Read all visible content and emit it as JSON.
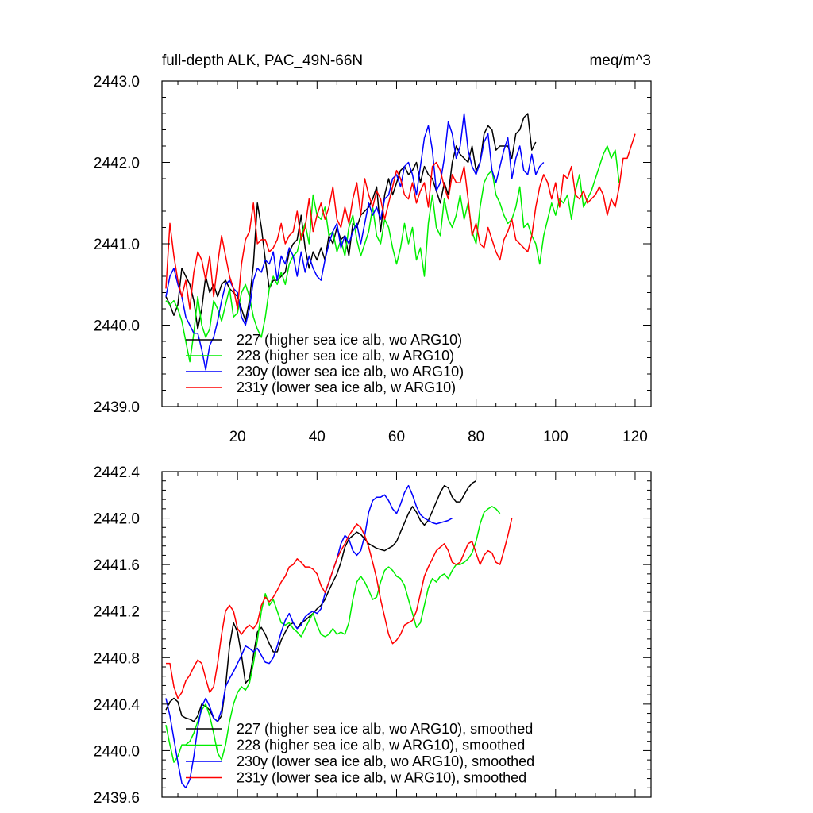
{
  "chart_data": [
    {
      "type": "line",
      "title_left": "full-depth ALK, PAC_49N-66N",
      "title_right": "meq/m^3",
      "xlabel": "",
      "ylabel": "",
      "xlim": [
        1,
        124
      ],
      "ylim": [
        2439.0,
        2443.0
      ],
      "x_ticks": [
        20,
        40,
        60,
        80,
        100,
        120
      ],
      "x_tick_labels": [
        "20",
        "40",
        "60",
        "80",
        "100",
        "120"
      ],
      "y_ticks": [
        2439.0,
        2440.0,
        2441.0,
        2442.0,
        2443.0
      ],
      "y_tick_labels": [
        "2439.0",
        "2440.0",
        "2441.0",
        "2442.0",
        "2443.0"
      ],
      "grid": false,
      "legend_position": "bottom-left",
      "series": [
        {
          "name": "227 (higher sea ice alb, wo ARG10)",
          "color": "#000000",
          "values": [
            2440.35,
            2440.25,
            2440.12,
            2440.25,
            2440.7,
            2440.6,
            2440.5,
            2440.3,
            2439.95,
            2440.2,
            2440.6,
            2440.4,
            2440.5,
            2440.35,
            2440.5,
            2440.55,
            2440.45,
            2440.4,
            2440.35,
            2440.2,
            2440.05,
            2440.3,
            2440.75,
            2441.5,
            2441.2,
            2440.8,
            2440.45,
            2440.55,
            2440.55,
            2440.6,
            2440.65,
            2440.9,
            2441.0,
            2441.05,
            2441.35,
            2440.95,
            2440.7,
            2440.9,
            2440.8,
            2440.95,
            2440.8,
            2441.1,
            2441.0,
            2441.2,
            2441.05,
            2441.1,
            2440.85,
            2441.25,
            2441.2,
            2441.35,
            2441.4,
            2441.45,
            2441.55,
            2441.7,
            2441.15,
            2441.6,
            2441.8,
            2441.6,
            2441.75,
            2441.9,
            2441.95,
            2441.85,
            2441.9,
            2442.0,
            2441.75,
            2441.95,
            2441.85,
            2441.8,
            2441.65,
            2441.5,
            2441.75,
            2441.6,
            2442.0,
            2442.2,
            2442.1,
            2442.05,
            2442.0,
            2442.2,
            2441.9,
            2442.0,
            2442.35,
            2442.45,
            2442.4,
            2442.15,
            2442.2,
            2442.2,
            2442.2,
            2442.05,
            2442.35,
            2442.4,
            2442.55,
            2442.6,
            2442.15,
            2442.25
          ],
          "smoothed_values": [
            2440.35,
            2440.42,
            2440.45,
            2440.42,
            2440.35,
            2440.3,
            2440.28,
            2440.26,
            2440.3,
            2440.36,
            2440.38,
            2440.35,
            2440.28,
            2440.32,
            2440.4,
            2440.42,
            2440.38,
            2440.3,
            2440.22,
            2440.28,
            2440.4,
            2440.65,
            2440.95,
            2441.1,
            2441.05,
            2440.88,
            2440.7,
            2440.58,
            2440.6,
            2440.75,
            2440.95,
            2441.05,
            2441.0,
            2440.92,
            2440.85,
            2440.82,
            2440.8,
            2440.88,
            2440.98,
            2441.02,
            2441.05,
            2441.08,
            2441.1,
            2441.12,
            2441.15,
            2441.22,
            2441.3,
            2441.4,
            2441.5,
            2441.58,
            2441.62,
            2441.7,
            2441.78,
            2441.85,
            2441.85,
            2441.8,
            2441.76,
            2441.73,
            2441.73,
            2441.8,
            2441.92,
            2442.0,
            2442.02,
            2442.05,
            2441.98,
            2441.9,
            2441.95,
            2442.08,
            2442.15,
            2442.22,
            2442.28,
            2442.2,
            2442.14,
            2442.14,
            2442.2,
            2442.28,
            2442.3,
            2442.32
          ]
        },
        {
          "name": "228 (higher sea ice alb, w ARG10)",
          "color": "#00ee00",
          "values": [
            2440.3,
            2440.25,
            2440.3,
            2440.2,
            2440.05,
            2439.8,
            2439.55,
            2439.9,
            2440.35,
            2440.0,
            2439.85,
            2439.95,
            2440.3,
            2440.2,
            2440.05,
            2440.25,
            2440.45,
            2440.1,
            2440.15,
            2440.4,
            2440.5,
            2440.35,
            2440.1,
            2439.95,
            2439.85,
            2440.1,
            2440.45,
            2440.6,
            2440.5,
            2440.65,
            2440.5,
            2440.75,
            2440.85,
            2440.9,
            2441.1,
            2441.25,
            2441.0,
            2441.6,
            2441.35,
            2441.3,
            2441.45,
            2441.1,
            2441.15,
            2440.9,
            2441.05,
            2440.85,
            2441.2,
            2441.35,
            2441.05,
            2440.85,
            2441.0,
            2441.15,
            2441.45,
            2441.1,
            2441.0,
            2441.3,
            2441.2,
            2440.95,
            2440.75,
            2440.95,
            2441.25,
            2441.0,
            2441.2,
            2440.8,
            2440.95,
            2440.6,
            2441.25,
            2441.6,
            2441.2,
            2441.1,
            2441.55,
            2441.3,
            2441.2,
            2441.35,
            2441.6,
            2441.3,
            2441.5,
            2441.15,
            2441.0,
            2441.45,
            2441.75,
            2441.85,
            2441.9,
            2441.6,
            2441.5,
            2441.35,
            2441.25,
            2441.3,
            2441.45,
            2441.7,
            2441.2,
            2441.25,
            2441.1,
            2441.0,
            2440.75,
            2441.1,
            2441.3,
            2441.5,
            2441.35,
            2441.55,
            2441.5,
            2441.6,
            2441.3,
            2441.65,
            2441.85,
            2441.45,
            2441.55,
            2441.65,
            2441.8,
            2441.95,
            2442.1,
            2442.2,
            2442.05,
            2442.15,
            2441.75
          ]
        },
        {
          "name": "230y (lower sea ice alb, wo ARG10)",
          "color": "#0000ff",
          "values": [
            2440.35,
            2440.6,
            2440.7,
            2440.5,
            2440.35,
            2440.1,
            2440.0,
            2439.9,
            2439.9,
            2439.7,
            2439.45,
            2439.75,
            2439.85,
            2440.05,
            2440.3,
            2440.5,
            2440.55,
            2440.45,
            2440.4,
            2440.1,
            2440.0,
            2440.2,
            2440.55,
            2440.7,
            2440.65,
            2440.8,
            2440.75,
            2440.9,
            2440.55,
            2440.85,
            2440.75,
            2440.95,
            2440.85,
            2440.6,
            2440.9,
            2440.65,
            2440.85,
            2440.7,
            2440.6,
            2440.55,
            2440.8,
            2441.0,
            2441.15,
            2441.25,
            2440.95,
            2441.1,
            2441.0,
            2441.15,
            2441.25,
            2441.0,
            2441.25,
            2441.5,
            2441.35,
            2441.45,
            2441.3,
            2441.55,
            2441.6,
            2441.8,
            2441.85,
            2441.7,
            2441.95,
            2442.0,
            2441.85,
            2441.6,
            2441.95,
            2442.3,
            2442.45,
            2442.15,
            2441.65,
            2441.75,
            2442.05,
            2442.5,
            2442.35,
            2442.05,
            2442.2,
            2442.6,
            2442.15,
            2441.95,
            2441.85,
            2442.0,
            2442.25,
            2442.35,
            2441.9,
            2441.75,
            2441.95,
            2442.15,
            2442.3,
            2441.8,
            2442.05,
            2442.2,
            2441.9,
            2441.85,
            2442.1,
            2441.85,
            2441.95,
            2442.0
          ]
        },
        {
          "name": "231y (lower sea ice alb, w ARG10)",
          "color": "#ff0000",
          "values": [
            2440.45,
            2441.25,
            2440.85,
            2440.55,
            2440.35,
            2440.55,
            2440.2,
            2440.65,
            2440.9,
            2440.8,
            2440.55,
            2440.85,
            2440.35,
            2440.75,
            2441.1,
            2440.85,
            2440.6,
            2440.45,
            2440.2,
            2440.75,
            2441.05,
            2441.15,
            2441.5,
            2441.0,
            2441.05,
            2441.05,
            2440.9,
            2440.95,
            2441.05,
            2441.25,
            2441.0,
            2441.1,
            2441.15,
            2441.4,
            2441.05,
            2441.2,
            2441.55,
            2441.15,
            2441.35,
            2441.5,
            2441.3,
            2441.45,
            2441.7,
            2441.3,
            2441.2,
            2441.45,
            2441.25,
            2441.55,
            2441.75,
            2441.35,
            2441.8,
            2441.6,
            2441.45,
            2441.65,
            2441.55,
            2441.3,
            2441.5,
            2441.7,
            2441.9,
            2441.8,
            2441.6,
            2441.55,
            2441.75,
            2441.5,
            2441.65,
            2441.75,
            2441.45,
            2441.95,
            2442.0,
            2441.9,
            2441.7,
            2441.55,
            2441.85,
            2441.75,
            2441.75,
            2441.95,
            2441.55,
            2441.1,
            2441.25,
            2441.0,
            2440.95,
            2441.2,
            2441.05,
            2440.9,
            2440.8,
            2441.05,
            2441.15,
            2441.3,
            2441.05,
            2441.0,
            2440.95,
            2440.9,
            2441.1,
            2441.45,
            2441.7,
            2441.85,
            2441.75,
            2441.55,
            2441.75,
            2441.45,
            2441.85,
            2441.8,
            2441.95,
            2441.6,
            2441.55,
            2441.65,
            2441.5,
            2441.55,
            2441.6,
            2441.7,
            2441.6,
            2441.35,
            2441.55,
            2441.45,
            2441.7,
            2442.05,
            2442.05,
            2442.2,
            2442.35
          ]
        }
      ]
    },
    {
      "type": "line",
      "xlabel": "",
      "ylabel": "",
      "xlim": [
        1,
        124
      ],
      "ylim": [
        2439.6,
        2442.4
      ],
      "x_ticks": [
        20,
        40,
        60,
        80,
        100,
        120
      ],
      "y_ticks": [
        2439.6,
        2440.0,
        2440.4,
        2440.8,
        2441.2,
        2441.6,
        2442.0,
        2442.4
      ],
      "y_tick_labels": [
        "2439.6",
        "2440.0",
        "2440.4",
        "2440.8",
        "2441.2",
        "2441.6",
        "2442.0",
        "2442.4"
      ],
      "grid": false,
      "legend_position": "bottom-left",
      "series": [
        {
          "name": "227 (higher sea ice alb, wo ARG10), smoothed",
          "color": "#000000",
          "values": [
            2440.35,
            2440.42,
            2440.45,
            2440.42,
            2440.3,
            2440.28,
            2440.27,
            2440.25,
            2440.3,
            2440.4,
            2440.38,
            2440.35,
            2440.28,
            2440.25,
            2440.3,
            2440.55,
            2440.9,
            2441.1,
            2441.02,
            2440.82,
            2440.58,
            2440.62,
            2440.82,
            2441.02,
            2441.06,
            2441.0,
            2440.92,
            2440.85,
            2440.85,
            2440.95,
            2441.02,
            2441.08,
            2441.1,
            2441.05,
            2441.1,
            2441.12,
            2441.15,
            2441.18,
            2441.22,
            2441.25,
            2441.3,
            2441.38,
            2441.45,
            2441.52,
            2441.62,
            2441.75,
            2441.82,
            2441.85,
            2441.88,
            2441.86,
            2441.82,
            2441.78,
            2441.76,
            2441.74,
            2441.73,
            2441.72,
            2441.74,
            2441.76,
            2441.8,
            2441.88,
            2441.96,
            2442.04,
            2442.1,
            2442.05,
            2441.98,
            2441.94,
            2441.98,
            2442.06,
            2442.14,
            2442.22,
            2442.28,
            2442.26,
            2442.18,
            2442.14,
            2442.14,
            2442.2,
            2442.26,
            2442.3,
            2442.32
          ]
        },
        {
          "name": "228 (higher sea ice alb, w ARG10), smoothed",
          "color": "#00ee00",
          "values": [
            2440.22,
            2440.05,
            2439.9,
            2439.95,
            2440.05,
            2440.05,
            2440.08,
            2440.15,
            2440.25,
            2440.35,
            2440.4,
            2440.3,
            2440.15,
            2439.98,
            2439.92,
            2440.05,
            2440.25,
            2440.4,
            2440.5,
            2440.55,
            2440.52,
            2440.58,
            2440.75,
            2440.95,
            2441.2,
            2441.35,
            2441.25,
            2441.3,
            2441.2,
            2441.1,
            2441.08,
            2441.1,
            2441.05,
            2441.02,
            2440.98,
            2441.05,
            2441.12,
            2441.18,
            2441.08,
            2441.0,
            2440.98,
            2441.0,
            2441.05,
            2441.0,
            2441.02,
            2441.0,
            2441.1,
            2441.3,
            2441.45,
            2441.5,
            2441.45,
            2441.38,
            2441.3,
            2441.32,
            2441.45,
            2441.55,
            2441.58,
            2441.55,
            2441.5,
            2441.48,
            2441.42,
            2441.3,
            2441.18,
            2441.06,
            2441.1,
            2441.25,
            2441.4,
            2441.48,
            2441.45,
            2441.5,
            2441.52,
            2441.48,
            2441.55,
            2441.6,
            2441.6,
            2441.62,
            2441.65,
            2441.7,
            2441.8,
            2441.95,
            2442.05,
            2442.08,
            2442.1,
            2442.08,
            2442.04
          ]
        },
        {
          "name": "230y (lower sea ice alb, wo ARG10), smoothed",
          "color": "#0000ff",
          "values": [
            2440.45,
            2440.3,
            2440.1,
            2439.9,
            2439.72,
            2439.68,
            2439.75,
            2439.95,
            2440.2,
            2440.38,
            2440.45,
            2440.38,
            2440.28,
            2440.25,
            2440.35,
            2440.55,
            2440.62,
            2440.68,
            2440.75,
            2440.82,
            2440.9,
            2440.88,
            2440.85,
            2440.88,
            2440.82,
            2440.76,
            2440.75,
            2440.8,
            2440.9,
            2441.02,
            2441.12,
            2441.18,
            2441.1,
            2441.05,
            2441.08,
            2441.15,
            2441.18,
            2441.2,
            2441.18,
            2441.22,
            2441.35,
            2441.45,
            2441.55,
            2441.65,
            2441.78,
            2441.85,
            2441.82,
            2441.72,
            2441.68,
            2441.72,
            2441.85,
            2442.05,
            2442.15,
            2442.18,
            2442.18,
            2442.2,
            2442.15,
            2442.08,
            2442.04,
            2442.12,
            2442.22,
            2442.28,
            2442.2,
            2442.1,
            2442.03,
            2442.0,
            2441.98,
            2441.96,
            2441.95,
            2441.96,
            2441.97,
            2441.98,
            2442.0
          ]
        },
        {
          "name": "231y (lower sea ice alb, w ARG10), smoothed",
          "color": "#ff0000",
          "values": [
            2440.75,
            2440.75,
            2440.55,
            2440.45,
            2440.5,
            2440.6,
            2440.65,
            2440.72,
            2440.78,
            2440.75,
            2440.62,
            2440.5,
            2440.55,
            2440.75,
            2441.0,
            2441.2,
            2441.25,
            2441.2,
            2441.05,
            2441.0,
            2441.05,
            2441.08,
            2441.05,
            2441.1,
            2441.25,
            2441.32,
            2441.28,
            2441.32,
            2441.38,
            2441.45,
            2441.5,
            2441.58,
            2441.6,
            2441.65,
            2441.62,
            2441.58,
            2441.58,
            2441.56,
            2441.52,
            2441.42,
            2441.36,
            2441.45,
            2441.55,
            2441.65,
            2441.72,
            2441.78,
            2441.85,
            2441.9,
            2441.95,
            2441.92,
            2441.85,
            2441.75,
            2441.62,
            2441.48,
            2441.3,
            2441.15,
            2441.0,
            2440.92,
            2440.95,
            2441.0,
            2441.08,
            2441.1,
            2441.12,
            2441.2,
            2441.35,
            2441.5,
            2441.58,
            2441.65,
            2441.72,
            2441.75,
            2441.78,
            2441.72,
            2441.62,
            2441.6,
            2441.62,
            2441.7,
            2441.78,
            2441.8,
            2441.7,
            2441.6,
            2441.68,
            2441.72,
            2441.7,
            2441.62,
            2441.6,
            2441.72,
            2441.85,
            2442.0
          ]
        }
      ]
    }
  ]
}
